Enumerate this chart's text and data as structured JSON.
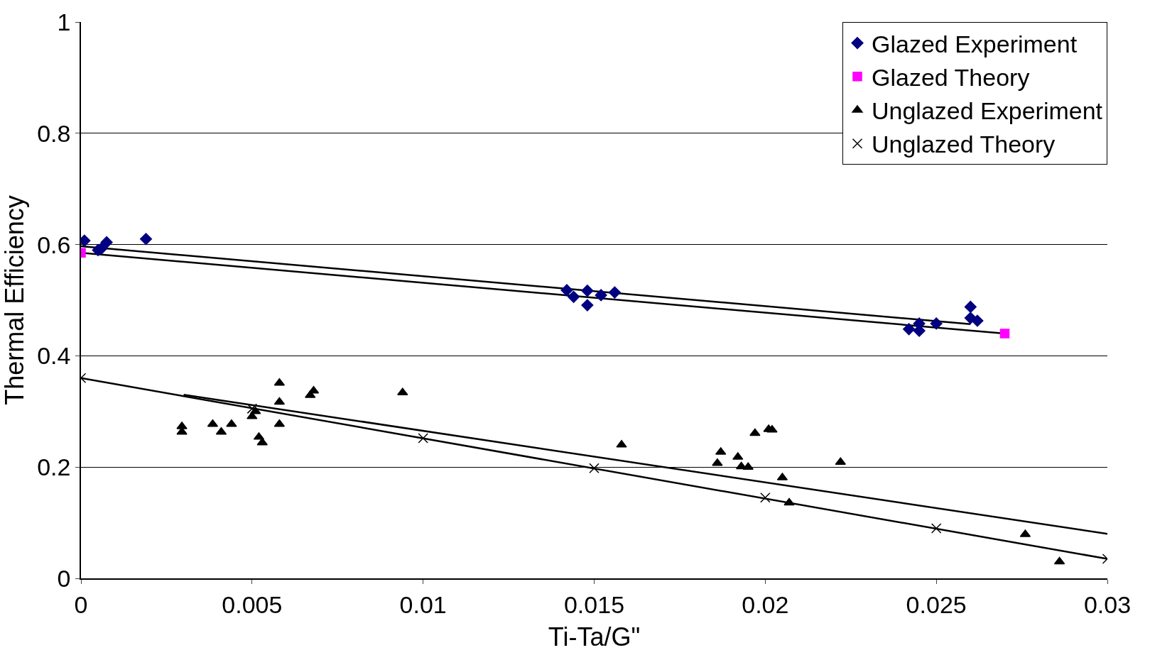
{
  "chart_data": {
    "type": "scatter",
    "xlabel": "Ti-Ta/G\"",
    "ylabel": "Thermal Efficiency",
    "xlim": [
      0,
      0.03
    ],
    "ylim": [
      0,
      1
    ],
    "xticks": [
      0,
      0.005,
      0.01,
      0.015,
      0.02,
      0.025,
      0.03
    ],
    "yticks": [
      0,
      0.2,
      0.4,
      0.6,
      0.8,
      1
    ],
    "grid": "y",
    "legend": "top right",
    "series": [
      {
        "name": "Glazed Experiment",
        "color": "#000080",
        "marker": "diamond",
        "x": [
          0.0001,
          0.0005,
          0.0006,
          0.00075,
          0.0019,
          0.0142,
          0.0144,
          0.0148,
          0.0148,
          0.0152,
          0.0156,
          0.0242,
          0.0245,
          0.0245,
          0.025,
          0.026,
          0.026,
          0.0262
        ],
        "values": [
          0.607,
          0.59,
          0.593,
          0.604,
          0.61,
          0.518,
          0.506,
          0.517,
          0.491,
          0.509,
          0.514,
          0.448,
          0.458,
          0.445,
          0.458,
          0.488,
          0.468,
          0.463
        ]
      },
      {
        "name": "Glazed Theory",
        "color": "#ff00ff",
        "marker": "square",
        "x": [
          0,
          0.027
        ],
        "values": [
          0.585,
          0.44
        ]
      },
      {
        "name": "Unglazed Experiment",
        "color": "#000000",
        "marker": "triangle",
        "x": [
          0.00295,
          0.00295,
          0.00385,
          0.0041,
          0.0044,
          0.005,
          0.0051,
          0.0052,
          0.0053,
          0.0058,
          0.0058,
          0.0058,
          0.0067,
          0.0068,
          0.0094,
          0.0158,
          0.0186,
          0.0187,
          0.0192,
          0.0193,
          0.0195,
          0.0197,
          0.0201,
          0.0202,
          0.0205,
          0.0207,
          0.0222,
          0.0276,
          0.0286
        ],
        "values": [
          0.273,
          0.263,
          0.277,
          0.263,
          0.277,
          0.291,
          0.3,
          0.254,
          0.244,
          0.351,
          0.317,
          0.277,
          0.329,
          0.337,
          0.334,
          0.24,
          0.207,
          0.227,
          0.218,
          0.201,
          0.2,
          0.261,
          0.268,
          0.267,
          0.181,
          0.136,
          0.209,
          0.079,
          0.03
        ]
      },
      {
        "name": "Unglazed Theory",
        "color": "#000000",
        "marker": "cross",
        "x": [
          0,
          0.005,
          0.01,
          0.015,
          0.02,
          0.025,
          0.03
        ],
        "values": [
          0.36,
          0.305,
          0.252,
          0.198,
          0.145,
          0.09,
          0.035
        ]
      },
      {
        "type": "line",
        "color": "#000000",
        "marker": "none",
        "line_style": "solid",
        "x": [
          0,
          0.026
        ],
        "values": [
          0.597,
          0.457
        ]
      },
      {
        "type": "line",
        "color": "#000000",
        "marker": "none",
        "line_style": "solid",
        "x": [
          0,
          0.027
        ],
        "values": [
          0.585,
          0.44
        ]
      },
      {
        "type": "line",
        "color": "#000000",
        "marker": "none",
        "line_style": "solid",
        "x": [
          0.003,
          0.03
        ],
        "values": [
          0.33,
          0.08
        ]
      },
      {
        "type": "line",
        "color": "#000000",
        "marker": "none",
        "line_style": "solid",
        "x": [
          0,
          0.03
        ],
        "values": [
          0.36,
          0.035
        ]
      }
    ]
  }
}
